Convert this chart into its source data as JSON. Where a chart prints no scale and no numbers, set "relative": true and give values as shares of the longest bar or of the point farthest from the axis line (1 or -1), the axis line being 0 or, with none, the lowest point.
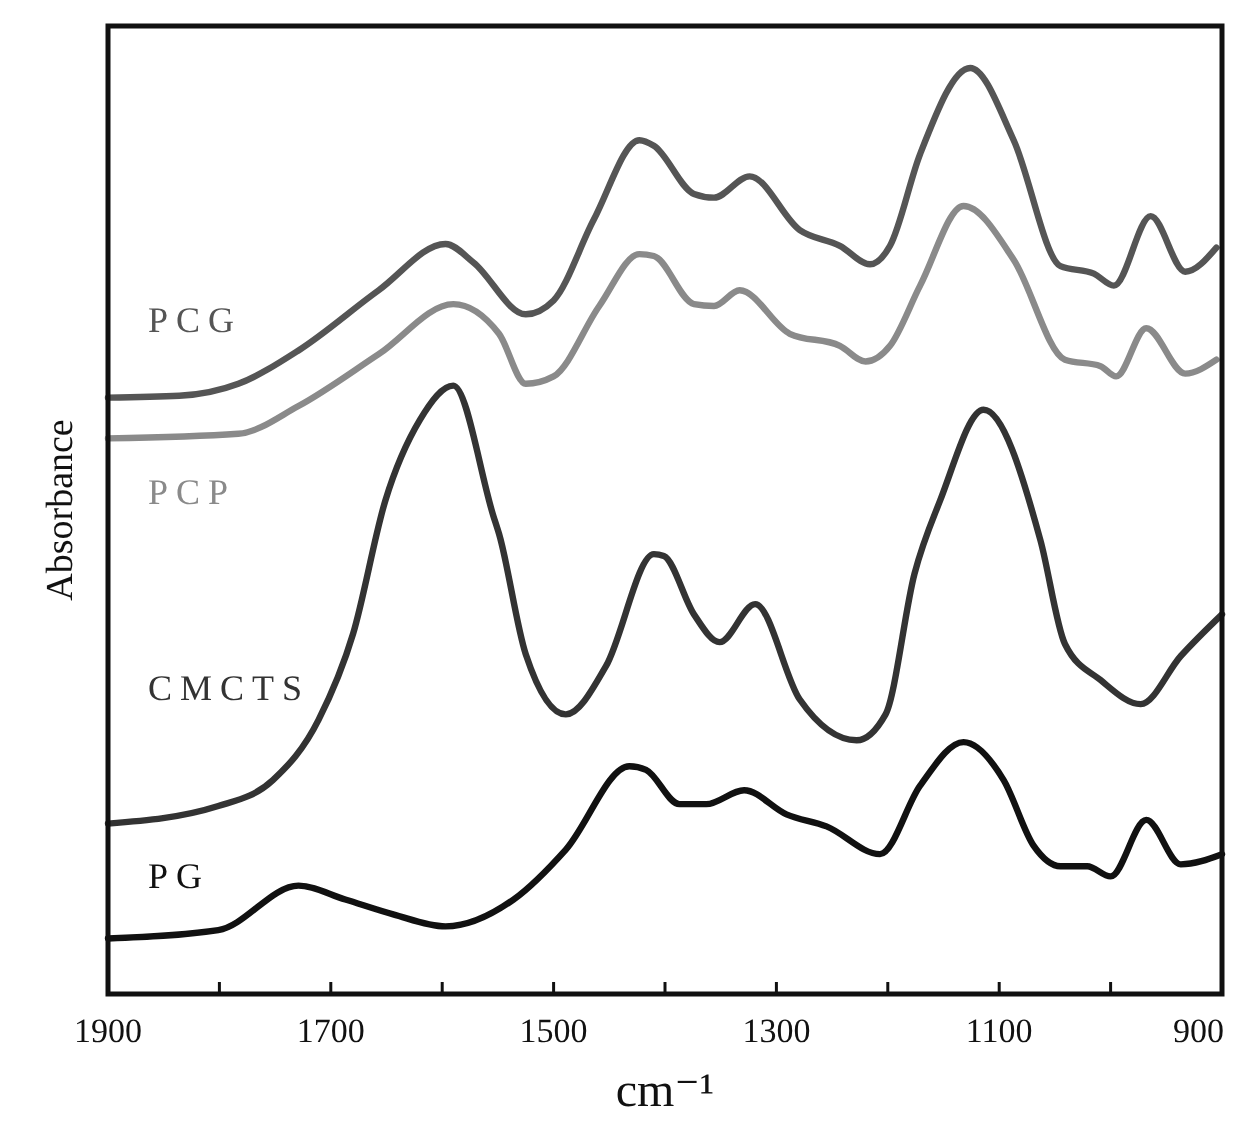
{
  "chart_data": {
    "type": "line",
    "relative": true,
    "xlabel": "cm⁻¹",
    "ylabel": "Absorbance",
    "xlim": [
      1900,
      900
    ],
    "xticks": [
      1900,
      {
        "value": 1800,
        "label": null
      },
      1700,
      {
        "value": 1600,
        "label": null
      },
      1500,
      {
        "value": 1400,
        "label": null
      },
      1300,
      {
        "value": 1200,
        "label": null
      },
      1100,
      {
        "value": 1000,
        "label": null
      },
      900
    ],
    "tick_labels": "x",
    "legend": false,
    "grid": false,
    "marker": "none",
    "line_style": "solid",
    "series": [
      {
        "name": "PCG",
        "color": "#555555",
        "x": [
          1900,
          1836,
          1783,
          1729,
          1657,
          1597,
          1572,
          1525,
          1500,
          1464,
          1423,
          1410,
          1374,
          1356,
          1324,
          1279,
          1243,
          1216,
          1198,
          1171,
          1126,
          1087,
          1045,
          1015,
          997,
          964,
          933,
          905
        ],
        "values": [
          0.644,
          0.646,
          0.659,
          0.695,
          0.76,
          0.81,
          0.79,
          0.734,
          0.749,
          0.836,
          0.922,
          0.916,
          0.864,
          0.86,
          0.883,
          0.825,
          0.808,
          0.788,
          0.808,
          0.907,
          1,
          0.922,
          0.786,
          0.778,
          0.765,
          0.84,
          0.78,
          0.806
        ]
      },
      {
        "name": "PCP",
        "color": "#8a8a8a",
        "x": [
          1900,
          1783,
          1729,
          1657,
          1590,
          1549,
          1525,
          1500,
          1459,
          1423,
          1410,
          1374,
          1356,
          1333,
          1288,
          1243,
          1220,
          1198,
          1171,
          1132,
          1087,
          1041,
          1009,
          995,
          968,
          933,
          905
        ],
        "values": [
          0.6,
          0.605,
          0.635,
          0.691,
          0.745,
          0.713,
          0.659,
          0.667,
          0.743,
          0.799,
          0.797,
          0.745,
          0.743,
          0.76,
          0.713,
          0.7,
          0.683,
          0.7,
          0.765,
          0.851,
          0.793,
          0.685,
          0.678,
          0.667,
          0.719,
          0.67,
          0.685
        ]
      },
      {
        "name": "CMCTS",
        "color": "#333333",
        "x": [
          1900,
          1801,
          1752,
          1711,
          1680,
          1651,
          1620,
          1590,
          1554,
          1549,
          1525,
          1489,
          1453,
          1410,
          1401,
          1374,
          1351,
          1319,
          1279,
          1228,
          1202,
          1176,
          1153,
          1114,
          1063,
          1041,
          1009,
          973,
          937,
          900
        ],
        "values": [
          0.184,
          0.203,
          0.231,
          0.296,
          0.389,
          0.533,
          0.62,
          0.657,
          0.516,
          0.497,
          0.367,
          0.302,
          0.354,
          0.475,
          0.473,
          0.41,
          0.38,
          0.421,
          0.318,
          0.274,
          0.302,
          0.454,
          0.533,
          0.631,
          0.49,
          0.378,
          0.339,
          0.313,
          0.365,
          0.41
        ]
      },
      {
        "name": "PG",
        "color": "#111111",
        "x": [
          1900,
          1801,
          1729,
          1687,
          1644,
          1597,
          1536,
          1489,
          1432,
          1417,
          1387,
          1363,
          1329,
          1291,
          1255,
          1207,
          1171,
          1132,
          1096,
          1069,
          1045,
          1021,
          1000,
          968,
          937,
          900
        ],
        "values": [
          0.06,
          0.069,
          0.117,
          0.102,
          0.086,
          0.073,
          0.102,
          0.156,
          0.246,
          0.242,
          0.205,
          0.205,
          0.22,
          0.194,
          0.181,
          0.151,
          0.225,
          0.272,
          0.231,
          0.16,
          0.138,
          0.138,
          0.127,
          0.188,
          0.14,
          0.151
        ]
      }
    ]
  }
}
